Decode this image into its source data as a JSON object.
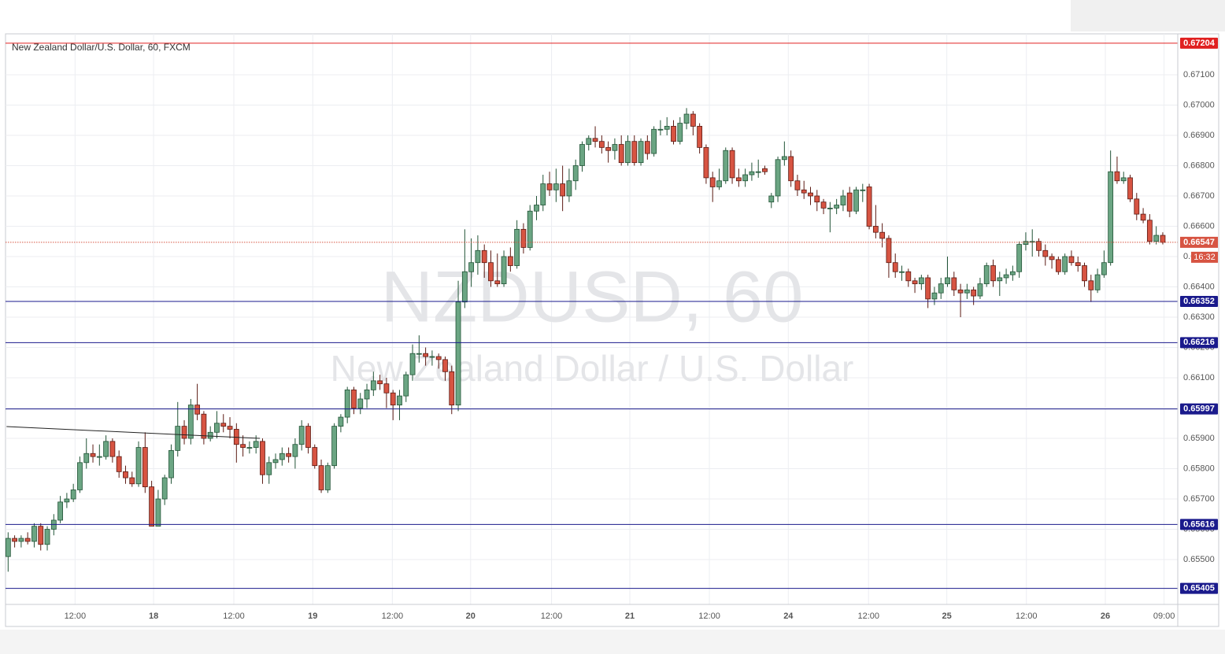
{
  "chart_data": {
    "type": "candlestick",
    "title": "New Zealand Dollar/U.S. Dollar, 60, FXCM",
    "watermark": [
      "NZDUSD, 60",
      "New Zealand Dollar / U.S. Dollar"
    ],
    "up_color": "#6ba583",
    "up_border": "#225437",
    "down_color": "#d75442",
    "down_border": "#5b1a13",
    "grid": true,
    "xlim": [
      -0.4,
      179.3
    ],
    "xticks": [
      {
        "value": 10.26,
        "label": "12:00"
      },
      {
        "value": 22.3,
        "label": "18"
      },
      {
        "value": 34.6,
        "label": "12:00"
      },
      {
        "value": 46.7,
        "label": "19"
      },
      {
        "value": 58.9,
        "label": "12:00"
      },
      {
        "value": 70.9,
        "label": "20"
      },
      {
        "value": 83.3,
        "label": "12:00"
      },
      {
        "value": 95.3,
        "label": "21"
      },
      {
        "value": 107.5,
        "label": "12:00"
      },
      {
        "value": 119.6,
        "label": "24"
      },
      {
        "value": 131.9,
        "label": "12:00"
      },
      {
        "value": 143.9,
        "label": "25"
      },
      {
        "value": 156.1,
        "label": "12:00"
      },
      {
        "value": 168.2,
        "label": "26"
      },
      {
        "value": 177.2,
        "label": "09:00"
      }
    ],
    "ylim": [
      0.65352,
      0.67235
    ],
    "yticks": [
      {
        "value": 0.655,
        "label": "0.65500"
      },
      {
        "value": 0.656,
        "label": "0.65600"
      },
      {
        "value": 0.657,
        "label": "0.65700"
      },
      {
        "value": 0.658,
        "label": "0.65800"
      },
      {
        "value": 0.659,
        "label": "0.65900"
      },
      {
        "value": 0.66,
        "label": "0.66000"
      },
      {
        "value": 0.661,
        "label": "0.66100"
      },
      {
        "value": 0.662,
        "label": "0.66200"
      },
      {
        "value": 0.663,
        "label": "0.66300"
      },
      {
        "value": 0.664,
        "label": "0.66400"
      },
      {
        "value": 0.665,
        "label": "0.66500"
      },
      {
        "value": 0.666,
        "label": "0.66600"
      },
      {
        "value": 0.667,
        "label": "0.66700"
      },
      {
        "value": 0.668,
        "label": "0.66800"
      },
      {
        "value": 0.669,
        "label": "0.66900"
      },
      {
        "value": 0.67,
        "label": "0.67000"
      },
      {
        "value": 0.671,
        "label": "0.67100"
      }
    ],
    "levels": [
      {
        "value": 0.67204,
        "color": "#e02020"
      },
      {
        "value": 0.66352,
        "color": "#1a1a8c"
      },
      {
        "value": 0.66216,
        "color": "#1a1a8c"
      },
      {
        "value": 0.65997,
        "color": "#1a1a8c"
      },
      {
        "value": 0.65616,
        "color": "#1a1a8c"
      },
      {
        "value": 0.65405,
        "color": "#1a1a8c"
      }
    ],
    "current_price": 0.66547,
    "countdown": "16:32",
    "trendline": {
      "x": [
        -0.24,
        38.6
      ],
      "y": [
        0.65939,
        0.659
      ]
    },
    "ohlc": [
      [
        0.6551,
        0.6559,
        0.6546,
        0.6557
      ],
      [
        0.6557,
        0.6558,
        0.6554,
        0.6556
      ],
      [
        0.6556,
        0.6558,
        0.6554,
        0.6557
      ],
      [
        0.6557,
        0.6559,
        0.6555,
        0.6556
      ],
      [
        0.6556,
        0.6562,
        0.6554,
        0.6561
      ],
      [
        0.6561,
        0.6562,
        0.6553,
        0.6555
      ],
      [
        0.6555,
        0.6561,
        0.6553,
        0.656
      ],
      [
        0.656,
        0.6565,
        0.6558,
        0.6563
      ],
      [
        0.6563,
        0.6571,
        0.6562,
        0.6569
      ],
      [
        0.6569,
        0.6572,
        0.6567,
        0.657
      ],
      [
        0.657,
        0.6575,
        0.6569,
        0.6573
      ],
      [
        0.6573,
        0.6584,
        0.6572,
        0.6582
      ],
      [
        0.6582,
        0.659,
        0.658,
        0.6585
      ],
      [
        0.6585,
        0.6588,
        0.6582,
        0.6584
      ],
      [
        0.6584,
        0.6588,
        0.6581,
        0.6584
      ],
      [
        0.6584,
        0.6591,
        0.6583,
        0.6589
      ],
      [
        0.6589,
        0.659,
        0.6582,
        0.6584
      ],
      [
        0.6584,
        0.6586,
        0.6577,
        0.6579
      ],
      [
        0.6579,
        0.6581,
        0.6575,
        0.6577
      ],
      [
        0.6577,
        0.6579,
        0.6574,
        0.6575
      ],
      [
        0.6575,
        0.6589,
        0.6574,
        0.6587
      ],
      [
        0.6587,
        0.6592,
        0.6572,
        0.6574
      ],
      [
        0.6574,
        0.6576,
        0.6561,
        0.6561
      ],
      [
        0.6561,
        0.6573,
        0.6561,
        0.657
      ],
      [
        0.657,
        0.6578,
        0.6568,
        0.6577
      ],
      [
        0.6577,
        0.6588,
        0.6575,
        0.6586
      ],
      [
        0.6586,
        0.6602,
        0.6584,
        0.6594
      ],
      [
        0.6594,
        0.6596,
        0.6588,
        0.659
      ],
      [
        0.659,
        0.6603,
        0.6588,
        0.6601
      ],
      [
        0.6601,
        0.6608,
        0.6596,
        0.6598
      ],
      [
        0.6598,
        0.6599,
        0.6588,
        0.659
      ],
      [
        0.659,
        0.6594,
        0.6589,
        0.6592
      ],
      [
        0.6592,
        0.6599,
        0.659,
        0.6595
      ],
      [
        0.6595,
        0.6598,
        0.6592,
        0.6594
      ],
      [
        0.6594,
        0.6597,
        0.659,
        0.6593
      ],
      [
        0.6593,
        0.6595,
        0.6582,
        0.6588
      ],
      [
        0.6588,
        0.6591,
        0.6584,
        0.6587
      ],
      [
        0.6587,
        0.6589,
        0.6585,
        0.6587
      ],
      [
        0.6587,
        0.6591,
        0.6585,
        0.6589
      ],
      [
        0.6589,
        0.659,
        0.6575,
        0.6578
      ],
      [
        0.6578,
        0.6584,
        0.6575,
        0.6582
      ],
      [
        0.6582,
        0.6585,
        0.658,
        0.6583
      ],
      [
        0.6583,
        0.6587,
        0.6581,
        0.6585
      ],
      [
        0.6585,
        0.6587,
        0.6582,
        0.6584
      ],
      [
        0.6584,
        0.659,
        0.658,
        0.6588
      ],
      [
        0.6588,
        0.6596,
        0.6586,
        0.6594
      ],
      [
        0.6594,
        0.6595,
        0.6585,
        0.6587
      ],
      [
        0.6587,
        0.6588,
        0.658,
        0.6581
      ],
      [
        0.6581,
        0.6583,
        0.6572,
        0.6573
      ],
      [
        0.6573,
        0.6582,
        0.6572,
        0.6581
      ],
      [
        0.6581,
        0.6595,
        0.658,
        0.6594
      ],
      [
        0.6594,
        0.6598,
        0.6592,
        0.6597
      ],
      [
        0.6597,
        0.6607,
        0.6595,
        0.6606
      ],
      [
        0.6606,
        0.6607,
        0.6598,
        0.66
      ],
      [
        0.66,
        0.6605,
        0.6598,
        0.6603
      ],
      [
        0.6603,
        0.6608,
        0.66,
        0.6606
      ],
      [
        0.6606,
        0.6612,
        0.6604,
        0.6609
      ],
      [
        0.6609,
        0.6611,
        0.6606,
        0.6608
      ],
      [
        0.6608,
        0.661,
        0.66,
        0.6605
      ],
      [
        0.6605,
        0.6606,
        0.6596,
        0.6601
      ],
      [
        0.6601,
        0.6606,
        0.6596,
        0.6604
      ],
      [
        0.6604,
        0.6612,
        0.6602,
        0.6611
      ],
      [
        0.6611,
        0.6621,
        0.6609,
        0.6618
      ],
      [
        0.6618,
        0.6624,
        0.6615,
        0.6618
      ],
      [
        0.6618,
        0.662,
        0.6614,
        0.6617
      ],
      [
        0.6617,
        0.6619,
        0.6614,
        0.6617
      ],
      [
        0.6617,
        0.6618,
        0.6613,
        0.6616
      ],
      [
        0.6616,
        0.6617,
        0.6609,
        0.6612
      ],
      [
        0.6612,
        0.6614,
        0.6598,
        0.6601
      ],
      [
        0.6601,
        0.6642,
        0.6599,
        0.6635
      ],
      [
        0.6635,
        0.6659,
        0.6633,
        0.6645
      ],
      [
        0.6645,
        0.6656,
        0.664,
        0.6648
      ],
      [
        0.6648,
        0.6657,
        0.6644,
        0.6652
      ],
      [
        0.6652,
        0.6654,
        0.6643,
        0.6648
      ],
      [
        0.6648,
        0.6652,
        0.664,
        0.6642
      ],
      [
        0.6642,
        0.6651,
        0.664,
        0.6641
      ],
      [
        0.6641,
        0.6652,
        0.664,
        0.665
      ],
      [
        0.665,
        0.6653,
        0.6645,
        0.6647
      ],
      [
        0.6647,
        0.6662,
        0.6646,
        0.6659
      ],
      [
        0.6659,
        0.6661,
        0.6651,
        0.6653
      ],
      [
        0.6653,
        0.6667,
        0.6652,
        0.6665
      ],
      [
        0.6665,
        0.667,
        0.6662,
        0.6667
      ],
      [
        0.6667,
        0.6677,
        0.6665,
        0.6674
      ],
      [
        0.6674,
        0.6678,
        0.667,
        0.6672
      ],
      [
        0.6672,
        0.6679,
        0.6668,
        0.6674
      ],
      [
        0.6674,
        0.668,
        0.6665,
        0.667
      ],
      [
        0.667,
        0.6679,
        0.6668,
        0.6675
      ],
      [
        0.6675,
        0.6682,
        0.6672,
        0.668
      ],
      [
        0.668,
        0.6688,
        0.6678,
        0.6687
      ],
      [
        0.6687,
        0.669,
        0.6685,
        0.6689
      ],
      [
        0.6689,
        0.6693,
        0.6686,
        0.6688
      ],
      [
        0.6688,
        0.669,
        0.6684,
        0.6686
      ],
      [
        0.6686,
        0.6688,
        0.6681,
        0.6685
      ],
      [
        0.6685,
        0.6689,
        0.6682,
        0.6687
      ],
      [
        0.6687,
        0.669,
        0.668,
        0.6681
      ],
      [
        0.6681,
        0.669,
        0.668,
        0.6688
      ],
      [
        0.6688,
        0.669,
        0.668,
        0.6681
      ],
      [
        0.6681,
        0.6689,
        0.668,
        0.6688
      ],
      [
        0.6688,
        0.669,
        0.6682,
        0.6684
      ],
      [
        0.6684,
        0.6693,
        0.6683,
        0.6692
      ],
      [
        0.6692,
        0.6695,
        0.669,
        0.6692
      ],
      [
        0.6692,
        0.6696,
        0.669,
        0.6693
      ],
      [
        0.6693,
        0.6695,
        0.6687,
        0.6688
      ],
      [
        0.6688,
        0.6696,
        0.6687,
        0.6694
      ],
      [
        0.6694,
        0.6699,
        0.6692,
        0.6697
      ],
      [
        0.6697,
        0.6698,
        0.669,
        0.6693
      ],
      [
        0.6693,
        0.6694,
        0.6684,
        0.6686
      ],
      [
        0.6686,
        0.6687,
        0.6674,
        0.6676
      ],
      [
        0.6676,
        0.6678,
        0.6668,
        0.6673
      ],
      [
        0.6673,
        0.6679,
        0.6672,
        0.6675
      ],
      [
        0.6675,
        0.6686,
        0.6674,
        0.6685
      ],
      [
        0.6685,
        0.6686,
        0.6674,
        0.6676
      ],
      [
        0.6676,
        0.6679,
        0.6673,
        0.6675
      ],
      [
        0.6675,
        0.6679,
        0.6673,
        0.6677
      ],
      [
        0.6677,
        0.6681,
        0.6675,
        0.6678
      ],
      [
        0.6678,
        0.6682,
        0.6676,
        0.6678
      ],
      [
        0.6679,
        0.668,
        0.6677,
        0.6678
      ],
      [
        0.6668,
        0.6671,
        0.6666,
        0.667
      ],
      [
        0.667,
        0.6683,
        0.6668,
        0.6682
      ],
      [
        0.6682,
        0.6688,
        0.668,
        0.6683
      ],
      [
        0.6683,
        0.6685,
        0.6673,
        0.6675
      ],
      [
        0.6675,
        0.6677,
        0.667,
        0.6672
      ],
      [
        0.6672,
        0.6675,
        0.6669,
        0.6671
      ],
      [
        0.6671,
        0.6673,
        0.6667,
        0.667
      ],
      [
        0.667,
        0.6672,
        0.6665,
        0.6668
      ],
      [
        0.6668,
        0.6669,
        0.6664,
        0.6666
      ],
      [
        0.6666,
        0.6668,
        0.6658,
        0.6666
      ],
      [
        0.6666,
        0.6669,
        0.6664,
        0.6667
      ],
      [
        0.6667,
        0.6672,
        0.6665,
        0.667
      ],
      [
        0.6671,
        0.6673,
        0.6663,
        0.6665
      ],
      [
        0.6665,
        0.6673,
        0.6664,
        0.6672
      ],
      [
        0.6672,
        0.6674,
        0.6668,
        0.6672
      ],
      [
        0.6673,
        0.6674,
        0.6659,
        0.666
      ],
      [
        0.666,
        0.6667,
        0.6656,
        0.6658
      ],
      [
        0.6658,
        0.6661,
        0.6653,
        0.6656
      ],
      [
        0.6656,
        0.6657,
        0.6643,
        0.6648
      ],
      [
        0.6648,
        0.6651,
        0.6643,
        0.6645
      ],
      [
        0.6645,
        0.6647,
        0.6642,
        0.6645
      ],
      [
        0.6645,
        0.6646,
        0.664,
        0.6642
      ],
      [
        0.6642,
        0.6643,
        0.6638,
        0.6641
      ],
      [
        0.6641,
        0.6644,
        0.6639,
        0.6643
      ],
      [
        0.6643,
        0.6644,
        0.6633,
        0.6636
      ],
      [
        0.6636,
        0.664,
        0.6634,
        0.6638
      ],
      [
        0.6638,
        0.6643,
        0.6636,
        0.6641
      ],
      [
        0.6641,
        0.665,
        0.664,
        0.6643
      ],
      [
        0.6643,
        0.6645,
        0.6637,
        0.6639
      ],
      [
        0.6639,
        0.6641,
        0.663,
        0.6638
      ],
      [
        0.6638,
        0.6641,
        0.6636,
        0.6639
      ],
      [
        0.6639,
        0.664,
        0.6634,
        0.6637
      ],
      [
        0.6637,
        0.6643,
        0.6636,
        0.6641
      ],
      [
        0.6641,
        0.6648,
        0.664,
        0.6647
      ],
      [
        0.6647,
        0.6649,
        0.664,
        0.6642
      ],
      [
        0.6642,
        0.6645,
        0.6637,
        0.6643
      ],
      [
        0.6643,
        0.6646,
        0.6641,
        0.6644
      ],
      [
        0.6644,
        0.6647,
        0.6642,
        0.6645
      ],
      [
        0.6645,
        0.6655,
        0.6643,
        0.6654
      ],
      [
        0.6654,
        0.6658,
        0.6652,
        0.6655
      ],
      [
        0.6655,
        0.6659,
        0.665,
        0.6655
      ],
      [
        0.6655,
        0.6656,
        0.665,
        0.6652
      ],
      [
        0.6652,
        0.6654,
        0.6647,
        0.665
      ],
      [
        0.665,
        0.6651,
        0.6646,
        0.6649
      ],
      [
        0.6649,
        0.665,
        0.6644,
        0.6645
      ],
      [
        0.6645,
        0.6651,
        0.6644,
        0.665
      ],
      [
        0.665,
        0.6652,
        0.6647,
        0.6648
      ],
      [
        0.6648,
        0.665,
        0.6645,
        0.6647
      ],
      [
        0.6647,
        0.6648,
        0.664,
        0.6642
      ],
      [
        0.6642,
        0.6644,
        0.6635,
        0.6639
      ],
      [
        0.6639,
        0.6646,
        0.6638,
        0.6644
      ],
      [
        0.6644,
        0.6652,
        0.6643,
        0.6648
      ],
      [
        0.6648,
        0.6685,
        0.6647,
        0.6678
      ],
      [
        0.6678,
        0.6683,
        0.6674,
        0.6675
      ],
      [
        0.6675,
        0.6678,
        0.6674,
        0.6676
      ],
      [
        0.6676,
        0.6677,
        0.6668,
        0.6669
      ],
      [
        0.6669,
        0.6671,
        0.6662,
        0.6664
      ],
      [
        0.6664,
        0.6666,
        0.6661,
        0.6662
      ],
      [
        0.6662,
        0.6664,
        0.6654,
        0.6655
      ],
      [
        0.6655,
        0.666,
        0.6654,
        0.6657
      ],
      [
        0.6657,
        0.6658,
        0.6654,
        0.66547
      ]
    ]
  }
}
